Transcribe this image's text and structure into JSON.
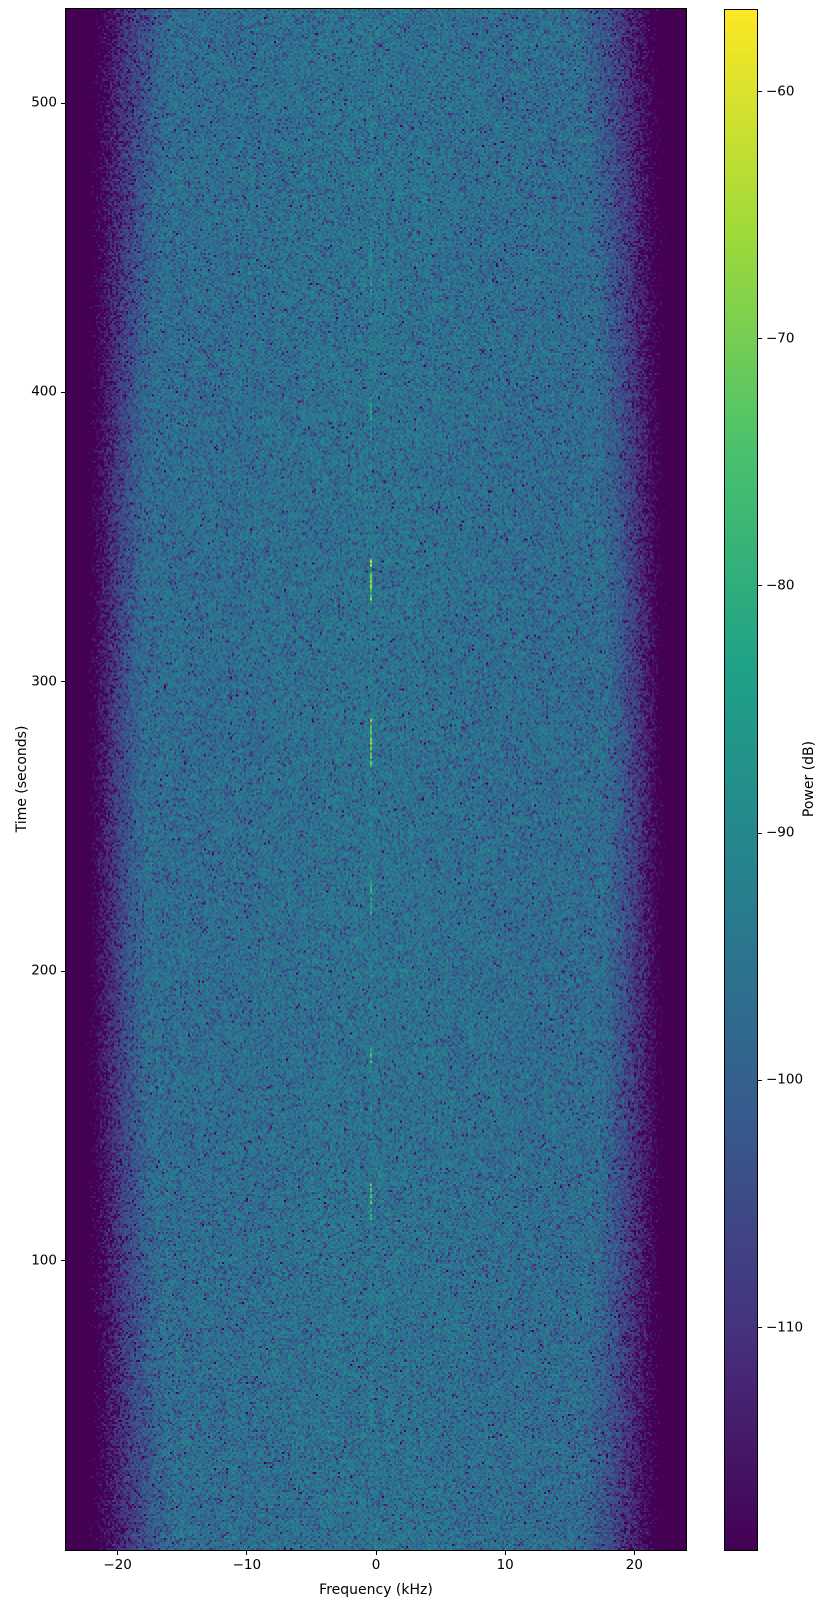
{
  "figure": {
    "background_color": "#ffffff"
  },
  "chart_data": {
    "type": "heatmap",
    "title": "",
    "xlabel": "Frequency (kHz)",
    "ylabel": "Time (seconds)",
    "colorbar_label": "Power (dB)",
    "x_range_khz": [
      -24,
      24
    ],
    "y_range_seconds": [
      0,
      532.5
    ],
    "grid": false,
    "x_ticks": [
      {
        "value": -20,
        "label": "−20"
      },
      {
        "value": -10,
        "label": "−10"
      },
      {
        "value": 0,
        "label": "0"
      },
      {
        "value": 10,
        "label": "10"
      },
      {
        "value": 20,
        "label": "20"
      }
    ],
    "y_ticks": [
      {
        "value": 100,
        "label": "100"
      },
      {
        "value": 200,
        "label": "200"
      },
      {
        "value": 300,
        "label": "300"
      },
      {
        "value": 400,
        "label": "400"
      },
      {
        "value": 500,
        "label": "500"
      }
    ],
    "colorbar": {
      "vmin": -119.0,
      "vmax": -56.7,
      "colormap": "viridis",
      "ticks": [
        {
          "value": -60,
          "label": "−60"
        },
        {
          "value": -70,
          "label": "−70"
        },
        {
          "value": -80,
          "label": "−80"
        },
        {
          "value": -90,
          "label": "−90"
        },
        {
          "value": -100,
          "label": "−100"
        },
        {
          "value": -110,
          "label": "−110"
        }
      ],
      "stops": [
        "#440154",
        "#46327e",
        "#365c8d",
        "#277f8e",
        "#1fa187",
        "#4ac16d",
        "#a0da39",
        "#fde725"
      ]
    },
    "noise_model": {
      "seed": 1337,
      "noise_floor_db": -95.5,
      "center_bump_db": 1.2,
      "passband_halfwidth_khz_mid": 17.8,
      "passband_halfwidth_khz_edge": 15.5,
      "stopband_start_khz": 23.3,
      "rolloff_depth_db": 34
    },
    "carrier_line": {
      "freq_khz": -0.4,
      "boost_db": 2.5
    },
    "signals": [
      {
        "freq_khz": -0.4,
        "t_start": 434,
        "t_end": 452,
        "boost_db": 5
      },
      {
        "freq_khz": -0.4,
        "t_start": 383,
        "t_end": 399,
        "boost_db": 7
      },
      {
        "freq_khz": -0.4,
        "t_start": 328,
        "t_end": 342,
        "boost_db": 21
      },
      {
        "freq_khz": -0.4,
        "t_start": 271,
        "t_end": 287,
        "boost_db": 19
      },
      {
        "freq_khz": -0.4,
        "t_start": 220,
        "t_end": 231,
        "boost_db": 11
      },
      {
        "freq_khz": -0.4,
        "t_start": 168,
        "t_end": 173,
        "boost_db": 12
      },
      {
        "freq_khz": -0.4,
        "t_start": 114,
        "t_end": 126,
        "boost_db": 15
      }
    ]
  }
}
